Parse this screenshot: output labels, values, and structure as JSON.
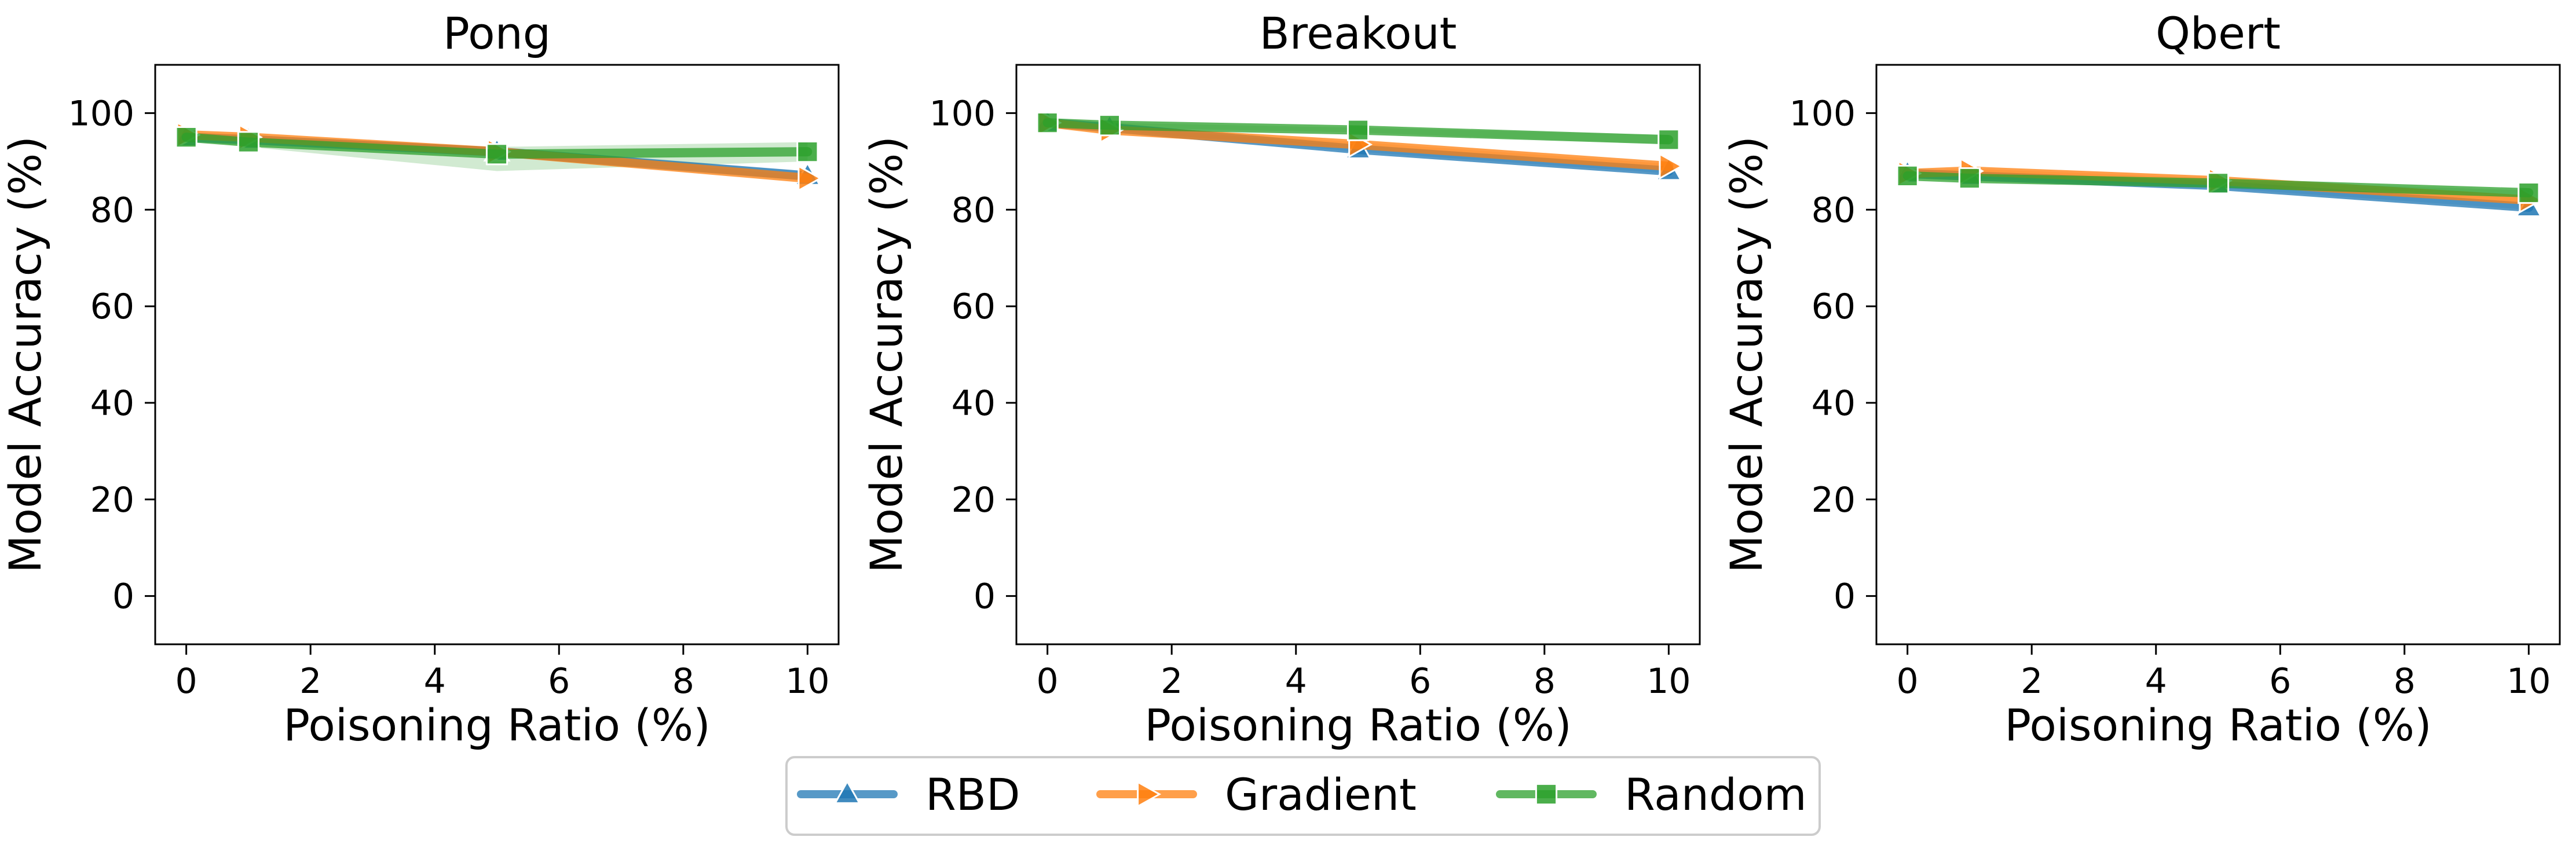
{
  "chart_data": [
    {
      "type": "line",
      "title": "Pong",
      "xlabel": "Poisoning Ratio (%)",
      "ylabel": "Model Accuracy (%)",
      "x": [
        0,
        1,
        5,
        10
      ],
      "xlim": [
        -0.5,
        10.5
      ],
      "ylim": [
        -10,
        110
      ],
      "xticks": [
        0,
        2,
        4,
        6,
        8,
        10
      ],
      "yticks": [
        0,
        20,
        40,
        60,
        80,
        100
      ],
      "series": [
        {
          "name": "RBD",
          "values": [
            95,
            94.5,
            92,
            87
          ],
          "band": [
            [
              95,
              95
            ],
            [
              94,
              95
            ],
            [
              91,
              93
            ],
            [
              86,
              88
            ]
          ]
        },
        {
          "name": "Gradient",
          "values": [
            95.5,
            95,
            92,
            86.5
          ],
          "band": [
            [
              95,
              96
            ],
            [
              94.5,
              95.5
            ],
            [
              91.5,
              92.5
            ],
            [
              86,
              87
            ]
          ]
        },
        {
          "name": "Random",
          "values": [
            95,
            94,
            91.5,
            92
          ],
          "band": [
            [
              94.5,
              95.5
            ],
            [
              93,
              95
            ],
            [
              88,
              93
            ],
            [
              90,
              94
            ]
          ]
        }
      ]
    },
    {
      "type": "line",
      "title": "Breakout",
      "xlabel": "Poisoning Ratio (%)",
      "ylabel": "Model Accuracy (%)",
      "x": [
        0,
        1,
        5,
        10
      ],
      "xlim": [
        -0.5,
        10.5
      ],
      "ylim": [
        -10,
        110
      ],
      "xticks": [
        0,
        2,
        4,
        6,
        8,
        10
      ],
      "yticks": [
        0,
        20,
        40,
        60,
        80,
        100
      ],
      "series": [
        {
          "name": "RBD",
          "values": [
            98,
            97,
            92.5,
            88
          ],
          "band": [
            [
              97.5,
              98.5
            ],
            [
              96.5,
              97.5
            ],
            [
              92,
              93
            ],
            [
              87.5,
              88.5
            ]
          ]
        },
        {
          "name": "Gradient",
          "values": [
            98,
            96.5,
            93.5,
            89
          ],
          "band": [
            [
              97.5,
              98.5
            ],
            [
              96,
              97
            ],
            [
              93,
              94
            ],
            [
              88.5,
              89.5
            ]
          ]
        },
        {
          "name": "Random",
          "values": [
            98,
            97.5,
            96.5,
            94.5
          ],
          "band": [
            [
              97.5,
              98.5
            ],
            [
              97,
              98
            ],
            [
              96,
              97
            ],
            [
              93.5,
              95.5
            ]
          ]
        }
      ]
    },
    {
      "type": "line",
      "title": "Qbert",
      "xlabel": "Poisoning Ratio (%)",
      "ylabel": "Model Accuracy (%)",
      "x": [
        0,
        1,
        5,
        10
      ],
      "xlim": [
        -0.5,
        10.5
      ],
      "ylim": [
        -10,
        110
      ],
      "xticks": [
        0,
        2,
        4,
        6,
        8,
        10
      ],
      "yticks": [
        0,
        20,
        40,
        60,
        80,
        100
      ],
      "series": [
        {
          "name": "RBD",
          "values": [
            87.5,
            87,
            85,
            80.5
          ],
          "band": [
            [
              87,
              88
            ],
            [
              86.5,
              87.5
            ],
            [
              84.5,
              85.5
            ],
            [
              80,
              81
            ]
          ]
        },
        {
          "name": "Gradient",
          "values": [
            87.5,
            88,
            86,
            82
          ],
          "band": [
            [
              87,
              88
            ],
            [
              87.5,
              88.5
            ],
            [
              85.5,
              86.5
            ],
            [
              81.5,
              82.5
            ]
          ]
        },
        {
          "name": "Random",
          "values": [
            87,
            86.5,
            85.5,
            83.5
          ],
          "band": [
            [
              86.5,
              87.5
            ],
            [
              86,
              87
            ],
            [
              85,
              86
            ],
            [
              83,
              84
            ]
          ]
        }
      ]
    }
  ],
  "legend": {
    "placement": "bottom-center",
    "entries": [
      {
        "label": "RBD",
        "color": "#1f77b4",
        "marker": "triangle-up"
      },
      {
        "label": "Gradient",
        "color": "#ff7f0e",
        "marker": "triangle-right"
      },
      {
        "label": "Random",
        "color": "#2ca02c",
        "marker": "square"
      }
    ]
  },
  "colors": {
    "RBD": "#1f77b4",
    "Gradient": "#ff7f0e",
    "Random": "#2ca02c"
  }
}
